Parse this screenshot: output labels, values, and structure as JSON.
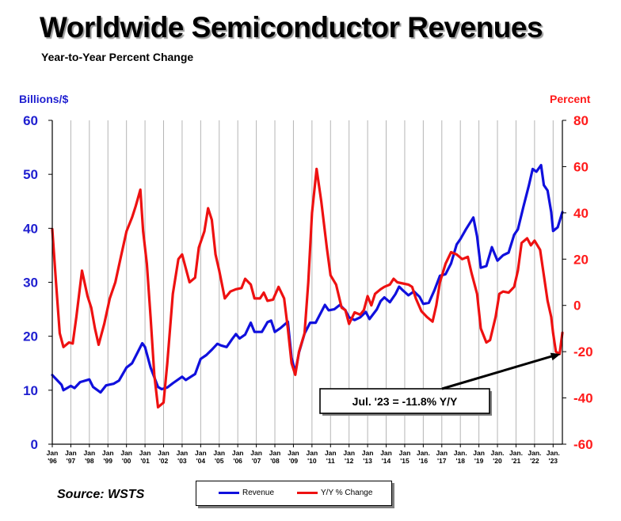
{
  "chart_data": {
    "type": "line",
    "title": "Worldwide Semiconductor Revenues",
    "subtitle": "Year-to-Year Percent Change",
    "ylabel_left": "Billions/$",
    "ylabel_right": "Percent",
    "ylim_left": [
      0,
      60
    ],
    "ylim_right": [
      -60,
      80
    ],
    "yticks_left": [
      "0",
      "10",
      "20",
      "30",
      "40",
      "50",
      "60"
    ],
    "yticks_right": [
      "-60",
      "-40",
      "-20",
      "0",
      "20",
      "40",
      "60",
      "80"
    ],
    "x_range": [
      1996.0,
      2023.5
    ],
    "grid": "vertical",
    "xticks": [
      {
        "year": 1996,
        "top": "Jan",
        "bottom": "'96"
      },
      {
        "year": 1997,
        "top": "Jan",
        "bottom": "'97"
      },
      {
        "year": 1998,
        "top": "Jan",
        "bottom": "'98"
      },
      {
        "year": 1999,
        "top": "Jan",
        "bottom": "'99"
      },
      {
        "year": 2000,
        "top": "Jan",
        "bottom": "'00"
      },
      {
        "year": 2001,
        "top": "Jan",
        "bottom": "'01"
      },
      {
        "year": 2002,
        "top": "Jan",
        "bottom": "'02"
      },
      {
        "year": 2003,
        "top": "Jan",
        "bottom": "'03"
      },
      {
        "year": 2004,
        "top": "Jan",
        "bottom": "'04"
      },
      {
        "year": 2005,
        "top": "Jan",
        "bottom": "'05"
      },
      {
        "year": 2006,
        "top": "Jan",
        "bottom": "'06"
      },
      {
        "year": 2007,
        "top": "Jan",
        "bottom": "'07"
      },
      {
        "year": 2008,
        "top": "Jan",
        "bottom": "'08"
      },
      {
        "year": 2009,
        "top": "Jan",
        "bottom": "'09"
      },
      {
        "year": 2010,
        "top": "Jan",
        "bottom": "'10"
      },
      {
        "year": 2011,
        "top": "Jan",
        "bottom": "'11"
      },
      {
        "year": 2012,
        "top": "Jan",
        "bottom": "'12"
      },
      {
        "year": 2013,
        "top": "Jan",
        "bottom": "'13"
      },
      {
        "year": 2014,
        "top": "Jan",
        "bottom": "'14"
      },
      {
        "year": 2015,
        "top": "Jan",
        "bottom": "'15"
      },
      {
        "year": 2016,
        "top": "Jan.",
        "bottom": "'16"
      },
      {
        "year": 2017,
        "top": "Jan",
        "bottom": "'17"
      },
      {
        "year": 2018,
        "top": "Jan.",
        "bottom": "'18"
      },
      {
        "year": 2019,
        "top": "Jan",
        "bottom": "'19"
      },
      {
        "year": 2020,
        "top": "Jan.",
        "bottom": "'20"
      },
      {
        "year": 2021,
        "top": "Jan.",
        "bottom": "'21"
      },
      {
        "year": 2022,
        "top": "Jan.",
        "bottom": "'22"
      },
      {
        "year": 2023,
        "top": "Jan.",
        "bottom": "'23"
      }
    ],
    "series": [
      {
        "name": "Revenue",
        "axis": "left",
        "color": "#1010dd",
        "points": [
          [
            1996.0,
            12.8
          ],
          [
            1996.5,
            11.0
          ],
          [
            1996.6,
            10.0
          ],
          [
            1997.0,
            10.8
          ],
          [
            1997.2,
            10.4
          ],
          [
            1997.5,
            11.5
          ],
          [
            1998.0,
            12.0
          ],
          [
            1998.2,
            10.6
          ],
          [
            1998.6,
            9.6
          ],
          [
            1998.9,
            10.9
          ],
          [
            1999.3,
            11.2
          ],
          [
            1999.6,
            11.8
          ],
          [
            2000.0,
            14.2
          ],
          [
            2000.3,
            15.0
          ],
          [
            2000.6,
            17.0
          ],
          [
            2000.85,
            18.7
          ],
          [
            2001.0,
            18.0
          ],
          [
            2001.3,
            14.2
          ],
          [
            2001.7,
            10.6
          ],
          [
            2001.9,
            10.2
          ],
          [
            2002.2,
            10.5
          ],
          [
            2002.5,
            11.3
          ],
          [
            2003.0,
            12.5
          ],
          [
            2003.2,
            11.9
          ],
          [
            2003.7,
            13.0
          ],
          [
            2004.0,
            15.8
          ],
          [
            2004.3,
            16.5
          ],
          [
            2004.6,
            17.5
          ],
          [
            2004.9,
            18.6
          ],
          [
            2005.1,
            18.3
          ],
          [
            2005.4,
            18.0
          ],
          [
            2005.7,
            19.5
          ],
          [
            2005.9,
            20.4
          ],
          [
            2006.1,
            19.6
          ],
          [
            2006.4,
            20.3
          ],
          [
            2006.7,
            22.5
          ],
          [
            2006.9,
            20.8
          ],
          [
            2007.3,
            20.8
          ],
          [
            2007.6,
            22.6
          ],
          [
            2007.8,
            22.9
          ],
          [
            2008.0,
            20.8
          ],
          [
            2008.3,
            21.5
          ],
          [
            2008.7,
            22.7
          ],
          [
            2008.9,
            16.0
          ],
          [
            2009.1,
            13.3
          ],
          [
            2009.3,
            17.0
          ],
          [
            2009.6,
            20.5
          ],
          [
            2009.9,
            22.5
          ],
          [
            2010.2,
            22.5
          ],
          [
            2010.5,
            24.5
          ],
          [
            2010.7,
            25.8
          ],
          [
            2010.9,
            24.8
          ],
          [
            2011.2,
            25.0
          ],
          [
            2011.5,
            25.8
          ],
          [
            2011.8,
            24.8
          ],
          [
            2012.0,
            23.5
          ],
          [
            2012.3,
            23.0
          ],
          [
            2012.6,
            23.5
          ],
          [
            2012.9,
            24.5
          ],
          [
            2013.1,
            23.2
          ],
          [
            2013.5,
            25.0
          ],
          [
            2013.7,
            26.5
          ],
          [
            2013.9,
            27.2
          ],
          [
            2014.2,
            26.3
          ],
          [
            2014.5,
            27.8
          ],
          [
            2014.7,
            29.2
          ],
          [
            2014.9,
            28.5
          ],
          [
            2015.2,
            27.6
          ],
          [
            2015.5,
            28.3
          ],
          [
            2015.8,
            27.3
          ],
          [
            2016.0,
            26.0
          ],
          [
            2016.3,
            26.2
          ],
          [
            2016.6,
            28.5
          ],
          [
            2016.9,
            31.2
          ],
          [
            2017.2,
            31.5
          ],
          [
            2017.5,
            33.5
          ],
          [
            2017.8,
            37.0
          ],
          [
            2018.0,
            38.0
          ],
          [
            2018.3,
            39.8
          ],
          [
            2018.7,
            42.0
          ],
          [
            2018.9,
            38.5
          ],
          [
            2019.1,
            32.7
          ],
          [
            2019.4,
            33.0
          ],
          [
            2019.7,
            36.5
          ],
          [
            2020.0,
            34.0
          ],
          [
            2020.3,
            35.0
          ],
          [
            2020.6,
            35.5
          ],
          [
            2020.9,
            38.8
          ],
          [
            2021.1,
            39.8
          ],
          [
            2021.4,
            44.0
          ],
          [
            2021.7,
            48.0
          ],
          [
            2021.9,
            51.0
          ],
          [
            2022.1,
            50.5
          ],
          [
            2022.35,
            51.7
          ],
          [
            2022.5,
            48.0
          ],
          [
            2022.7,
            47.0
          ],
          [
            2022.9,
            43.0
          ],
          [
            2023.0,
            39.5
          ],
          [
            2023.25,
            40.2
          ],
          [
            2023.5,
            43.0
          ]
        ]
      },
      {
        "name": "Y/Y % Change",
        "axis": "right",
        "color": "#ee1111",
        "points": [
          [
            1996.0,
            33.0
          ],
          [
            1996.2,
            10.0
          ],
          [
            1996.4,
            -12.0
          ],
          [
            1996.6,
            -18.0
          ],
          [
            1996.9,
            -16.0
          ],
          [
            1997.1,
            -16.5
          ],
          [
            1997.3,
            -5.0
          ],
          [
            1997.6,
            15.0
          ],
          [
            1997.9,
            4.0
          ],
          [
            1998.1,
            -1.0
          ],
          [
            1998.3,
            -10.0
          ],
          [
            1998.5,
            -17.0
          ],
          [
            1998.8,
            -8.0
          ],
          [
            1999.1,
            3.0
          ],
          [
            1999.4,
            10.0
          ],
          [
            1999.7,
            21.0
          ],
          [
            2000.0,
            32.0
          ],
          [
            2000.3,
            38.0
          ],
          [
            2000.5,
            43.0
          ],
          [
            2000.75,
            50.0
          ],
          [
            2000.9,
            32.0
          ],
          [
            2001.1,
            18.0
          ],
          [
            2001.3,
            -5.0
          ],
          [
            2001.5,
            -30.0
          ],
          [
            2001.7,
            -44.0
          ],
          [
            2002.0,
            -42.0
          ],
          [
            2002.2,
            -25.0
          ],
          [
            2002.5,
            5.0
          ],
          [
            2002.8,
            20.0
          ],
          [
            2003.0,
            22.0
          ],
          [
            2003.2,
            16.0
          ],
          [
            2003.4,
            10.0
          ],
          [
            2003.7,
            12.0
          ],
          [
            2003.9,
            25.0
          ],
          [
            2004.2,
            32.0
          ],
          [
            2004.4,
            42.0
          ],
          [
            2004.6,
            37.0
          ],
          [
            2004.8,
            22.0
          ],
          [
            2005.0,
            15.0
          ],
          [
            2005.3,
            3.0
          ],
          [
            2005.6,
            6.0
          ],
          [
            2005.9,
            7.0
          ],
          [
            2006.2,
            7.5
          ],
          [
            2006.4,
            11.5
          ],
          [
            2006.7,
            9.0
          ],
          [
            2006.9,
            3.0
          ],
          [
            2007.2,
            3.0
          ],
          [
            2007.4,
            5.5
          ],
          [
            2007.6,
            2.0
          ],
          [
            2007.9,
            2.5
          ],
          [
            2008.2,
            8.0
          ],
          [
            2008.5,
            3.0
          ],
          [
            2008.7,
            -10.0
          ],
          [
            2008.9,
            -25.0
          ],
          [
            2009.1,
            -30.0
          ],
          [
            2009.3,
            -20.0
          ],
          [
            2009.6,
            -12.0
          ],
          [
            2009.8,
            10.0
          ],
          [
            2010.0,
            40.0
          ],
          [
            2010.25,
            59.0
          ],
          [
            2010.5,
            45.0
          ],
          [
            2010.8,
            25.0
          ],
          [
            2011.0,
            13.0
          ],
          [
            2011.3,
            9.0
          ],
          [
            2011.6,
            -1.0
          ],
          [
            2011.8,
            -2.0
          ],
          [
            2012.0,
            -8.0
          ],
          [
            2012.3,
            -3.0
          ],
          [
            2012.6,
            -4.0
          ],
          [
            2012.8,
            -2.0
          ],
          [
            2013.0,
            4.0
          ],
          [
            2013.2,
            0.0
          ],
          [
            2013.4,
            5.0
          ],
          [
            2013.7,
            7.0
          ],
          [
            2013.9,
            8.0
          ],
          [
            2014.2,
            9.0
          ],
          [
            2014.4,
            11.5
          ],
          [
            2014.6,
            10.0
          ],
          [
            2014.9,
            9.5
          ],
          [
            2015.2,
            9.0
          ],
          [
            2015.4,
            8.0
          ],
          [
            2015.6,
            3.0
          ],
          [
            2015.9,
            -2.5
          ],
          [
            2016.2,
            -5.0
          ],
          [
            2016.5,
            -7.0
          ],
          [
            2016.7,
            0.0
          ],
          [
            2016.9,
            10.0
          ],
          [
            2017.2,
            18.0
          ],
          [
            2017.5,
            23.0
          ],
          [
            2017.8,
            22.0
          ],
          [
            2018.1,
            20.0
          ],
          [
            2018.4,
            21.0
          ],
          [
            2018.6,
            14.0
          ],
          [
            2018.9,
            5.0
          ],
          [
            2019.1,
            -10.0
          ],
          [
            2019.4,
            -16.0
          ],
          [
            2019.6,
            -15.0
          ],
          [
            2019.9,
            -5.0
          ],
          [
            2020.1,
            5.0
          ],
          [
            2020.3,
            6.0
          ],
          [
            2020.6,
            5.5
          ],
          [
            2020.9,
            8.0
          ],
          [
            2021.1,
            15.0
          ],
          [
            2021.3,
            27.0
          ],
          [
            2021.6,
            29.0
          ],
          [
            2021.8,
            26.0
          ],
          [
            2022.0,
            28.0
          ],
          [
            2022.3,
            24.0
          ],
          [
            2022.5,
            13.0
          ],
          [
            2022.7,
            2.0
          ],
          [
            2022.9,
            -5.0
          ],
          [
            2023.0,
            -12.0
          ],
          [
            2023.15,
            -20.0
          ],
          [
            2023.35,
            -21.0
          ],
          [
            2023.5,
            -11.8
          ]
        ]
      }
    ],
    "annotation": {
      "text": "Jul. '23 = -11.8% Y/Y",
      "point": [
        2023.4,
        -21.0
      ]
    },
    "legend_position": "bottom"
  },
  "source": "Source: WSTS"
}
